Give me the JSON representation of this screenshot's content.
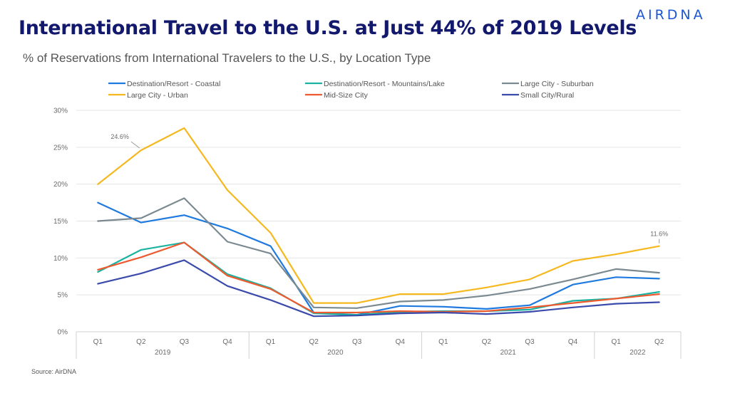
{
  "header": {
    "title": "International Travel to the U.S. at Just 44% of 2019 Levels",
    "subtitle": "% of Reservations from International Travelers to the U.S., by Location Type",
    "logo": "AIRDNA"
  },
  "footer": {
    "source": "Source: AirDNA"
  },
  "chart_data": {
    "type": "line",
    "title": "International Travel to the U.S. at Just 44% of 2019 Levels",
    "subtitle": "% of Reservations from International Travelers to the U.S., by Location Type",
    "categories": [
      "Q1",
      "Q2",
      "Q3",
      "Q4",
      "Q1",
      "Q2",
      "Q3",
      "Q4",
      "Q1",
      "Q2",
      "Q3",
      "Q4",
      "Q1",
      "Q2"
    ],
    "groups": [
      {
        "label": "2019",
        "count": 4
      },
      {
        "label": "2020",
        "count": 4
      },
      {
        "label": "2021",
        "count": 4
      },
      {
        "label": "2022",
        "count": 2
      }
    ],
    "ylim": [
      0,
      30
    ],
    "yticks": [
      {
        "value": 0,
        "label": "0%"
      },
      {
        "value": 5,
        "label": "5%"
      },
      {
        "value": 10,
        "label": "10%"
      },
      {
        "value": 15,
        "label": "15%"
      },
      {
        "value": 20,
        "label": "20%"
      },
      {
        "value": 25,
        "label": "25%"
      },
      {
        "value": 30,
        "label": "30%"
      }
    ],
    "grid": true,
    "legend_position": "top",
    "series": [
      {
        "name": "Destination/Resort - Coastal",
        "color": "#1f7ae0",
        "values": [
          17.5,
          14.8,
          15.8,
          14.0,
          11.6,
          2.6,
          2.3,
          3.5,
          3.4,
          3.1,
          3.6,
          6.4,
          7.4,
          7.2
        ]
      },
      {
        "name": "Destination/Resort - Mountains/Lake",
        "color": "#1ab3a2",
        "values": [
          8.1,
          11.1,
          12.1,
          7.8,
          5.9,
          2.5,
          2.3,
          2.7,
          2.8,
          2.8,
          3.0,
          4.2,
          4.5,
          5.4
        ]
      },
      {
        "name": "Large City - Suburban",
        "color": "#7b8a91",
        "values": [
          15.0,
          15.4,
          18.1,
          12.2,
          10.6,
          3.3,
          3.2,
          4.1,
          4.3,
          4.9,
          5.8,
          7.1,
          8.5,
          8.0
        ]
      },
      {
        "name": "Large City - Urban",
        "color": "#f5b81e",
        "values": [
          20.0,
          24.6,
          27.6,
          19.2,
          13.4,
          3.9,
          3.9,
          5.1,
          5.1,
          6.0,
          7.1,
          9.6,
          10.5,
          11.6
        ]
      },
      {
        "name": "Mid-Size City",
        "color": "#ee5a2f",
        "values": [
          8.4,
          10.1,
          12.1,
          7.6,
          5.8,
          2.6,
          2.6,
          2.8,
          2.7,
          2.8,
          3.3,
          3.9,
          4.5,
          5.1
        ]
      },
      {
        "name": "Small City/Rural",
        "color": "#3b4bab",
        "values": [
          6.5,
          7.9,
          9.7,
          6.2,
          4.3,
          2.1,
          2.2,
          2.5,
          2.6,
          2.4,
          2.7,
          3.3,
          3.8,
          4.0
        ]
      }
    ],
    "annotations": [
      {
        "series": "Large City - Urban",
        "index": 1,
        "label": "24.6%"
      },
      {
        "series": "Large City - Urban",
        "index": 13,
        "label": "11.6%"
      }
    ]
  }
}
